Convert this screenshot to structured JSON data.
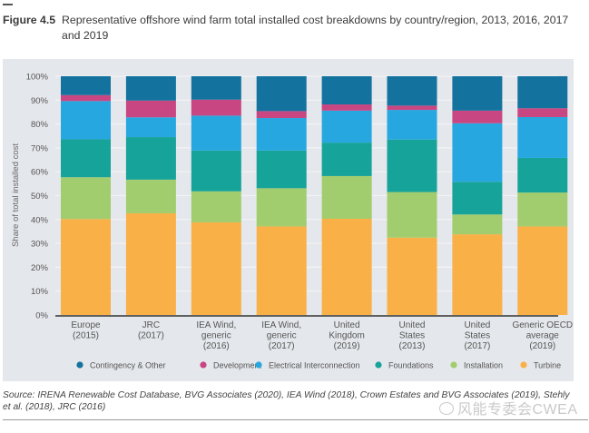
{
  "figure": {
    "number": "Figure 4.5",
    "title": "Representative offshore wind farm total installed cost breakdowns by country/region, 2013, 2016, 2017 and 2019"
  },
  "source": "Source: IRENA Renewable Cost Database, BVG Associates (2020), IEA Wind (2018), Crown Estates and BVG Associates (2019), Stehly et al. (2018), JRC (2016)",
  "watermark": "风能专委会CWEA",
  "chart_data": {
    "type": "bar",
    "stacked": true,
    "title": "Representative offshore wind farm total installed cost breakdowns by country/region, 2013, 2016, 2017 and 2019",
    "xlabel": "",
    "ylabel": "Share of total installed cost",
    "ylim": [
      0,
      100
    ],
    "yticks": [
      0,
      10,
      20,
      30,
      40,
      50,
      60,
      70,
      80,
      90,
      100
    ],
    "ytick_labels": [
      "0%",
      "10%",
      "20%",
      "30%",
      "40%",
      "50%",
      "60%",
      "70%",
      "80%",
      "90%",
      "100%"
    ],
    "grid": true,
    "legend_position": "bottom",
    "categories": [
      [
        "Europe",
        "(2015)"
      ],
      [
        "JRC",
        "(2017)"
      ],
      [
        "IEA Wind,",
        "generic",
        "(2016)"
      ],
      [
        "IEA Wind,",
        "generic",
        "(2017)"
      ],
      [
        "United",
        "Kingdom",
        "(2019)"
      ],
      [
        "United",
        "States",
        "(2013)"
      ],
      [
        "United",
        "States",
        "(2017)"
      ],
      [
        "Generic OECD",
        "average",
        "(2019)"
      ]
    ],
    "series": [
      {
        "name": "Turbine",
        "color": "#f9b046",
        "values": [
          40.2,
          42.6,
          38.8,
          37.1,
          40.3,
          32.4,
          33.8,
          37.1
        ]
      },
      {
        "name": "Installation",
        "color": "#a2cd6e",
        "values": [
          17.5,
          14.1,
          13.0,
          16.0,
          17.9,
          19.1,
          8.3,
          14.2
        ]
      },
      {
        "name": "Foundations",
        "color": "#16a39a",
        "values": [
          15.9,
          17.8,
          17.1,
          15.8,
          14.0,
          22.0,
          13.7,
          14.5
        ]
      },
      {
        "name": "Electrical Interconnection",
        "color": "#27a7e0",
        "values": [
          16.0,
          8.3,
          14.6,
          13.6,
          13.4,
          12.4,
          24.5,
          17.1
        ]
      },
      {
        "name": "Development",
        "color": "#c84682",
        "values": [
          2.5,
          7.0,
          6.7,
          2.9,
          2.6,
          1.8,
          5.3,
          3.7
        ]
      },
      {
        "name": "Contingency & Other",
        "color": "#14729e",
        "values": [
          7.9,
          10.2,
          9.8,
          14.6,
          11.8,
          12.3,
          14.4,
          13.4
        ]
      }
    ],
    "legend": [
      "Contingency & Other",
      "Development",
      "Electrical Interconnection",
      "Foundations",
      "Installation",
      "Turbine"
    ]
  }
}
